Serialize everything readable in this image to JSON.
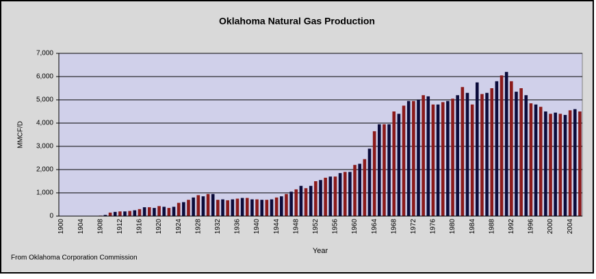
{
  "chart_data": {
    "type": "bar",
    "title": "Oklahoma Natural Gas Production",
    "x_label": "Year",
    "y_label": "MMCF/D",
    "source": "From Oklahoma Corporation Commission",
    "categories": [
      "1900",
      null,
      null,
      null,
      "1904",
      null,
      null,
      null,
      "1908",
      null,
      null,
      null,
      "1912",
      null,
      null,
      null,
      "1916",
      null,
      null,
      null,
      "1920",
      null,
      null,
      null,
      "1924",
      null,
      null,
      null,
      "1928",
      null,
      null,
      null,
      "1932",
      null,
      null,
      null,
      "1936",
      null,
      null,
      null,
      "1940",
      null,
      null,
      null,
      "1944",
      null,
      null,
      null,
      "1948",
      null,
      null,
      null,
      "1952",
      null,
      null,
      null,
      "1956",
      null,
      null,
      null,
      "1960",
      null,
      null,
      null,
      "1964",
      null,
      null,
      null,
      "1968",
      null,
      null,
      null,
      "1972",
      null,
      null,
      null,
      "1976",
      null,
      null,
      null,
      "1980",
      null,
      null,
      null,
      "1984",
      null,
      null,
      null,
      "1988",
      null,
      null,
      null,
      "1992",
      null,
      null,
      null,
      "1996",
      null,
      null,
      null,
      "2000",
      null,
      null,
      null,
      "2004",
      null,
      null
    ],
    "values": [
      0,
      0,
      0,
      0,
      0,
      0,
      0,
      10,
      20,
      50,
      150,
      180,
      200,
      200,
      220,
      250,
      300,
      380,
      380,
      350,
      430,
      400,
      350,
      400,
      570,
      600,
      700,
      800,
      900,
      850,
      950,
      950,
      700,
      720,
      680,
      720,
      750,
      780,
      780,
      720,
      720,
      700,
      700,
      720,
      800,
      850,
      950,
      1050,
      1150,
      1300,
      1200,
      1300,
      1500,
      1550,
      1650,
      1700,
      1700,
      1850,
      1900,
      1900,
      2200,
      2250,
      2450,
      2900,
      3650,
      3950,
      3950,
      3950,
      4500,
      4400,
      4750,
      4950,
      4950,
      5000,
      5200,
      5150,
      4800,
      4800,
      4900,
      4950,
      5050,
      5200,
      5550,
      5300,
      4800,
      5750,
      5250,
      5300,
      5500,
      5800,
      6050,
      6200,
      5800,
      5350,
      5500,
      5200,
      4850,
      4800,
      4700,
      4500,
      4400,
      4450,
      4400,
      4350,
      4550,
      4600,
      4500
    ],
    "colors": [
      "#8b1a1a",
      "#0b0b3a"
    ],
    "ylim": [
      0,
      7000
    ],
    "yticks": [
      0,
      {
        "value": 1000,
        "label": "1,000"
      },
      {
        "value": 2000,
        "label": "2,000"
      },
      {
        "value": 3000,
        "label": "3,000"
      },
      {
        "value": 4000,
        "label": "4,000"
      },
      {
        "value": 5000,
        "label": "5,000"
      },
      {
        "value": 6000,
        "label": "6,000"
      },
      {
        "value": 7000,
        "label": "7,000"
      }
    ],
    "grid": true
  }
}
